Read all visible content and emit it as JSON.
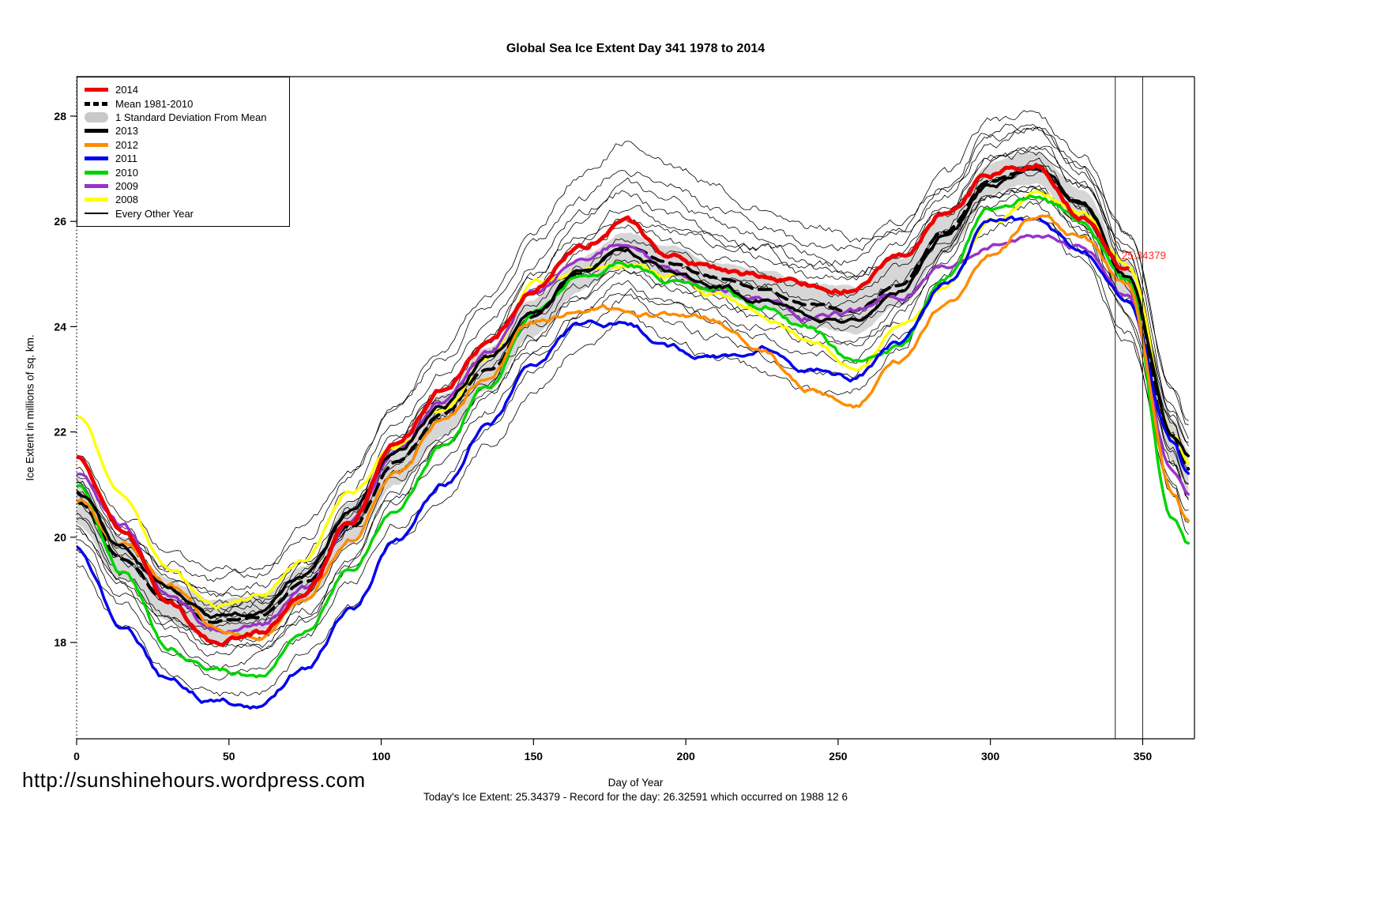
{
  "chart_data": {
    "type": "line",
    "title": "Global Sea Ice Extent Day 341 1978 to 2014",
    "xlabel": "Day of Year",
    "ylabel": "Ice Extent in millions of sq. km.",
    "xlim": [
      0,
      367
    ],
    "ylim": [
      16.17,
      28.75
    ],
    "xticks": [
      0,
      50,
      100,
      150,
      200,
      250,
      300,
      350
    ],
    "yticks": [
      18,
      20,
      22,
      24,
      26,
      28
    ],
    "grid": false,
    "legend_position": "top-left",
    "sample_days": [
      0,
      15,
      30,
      45,
      60,
      75,
      90,
      105,
      120,
      135,
      150,
      165,
      180,
      195,
      210,
      225,
      240,
      255,
      270,
      285,
      300,
      315,
      330,
      345,
      360,
      365
    ],
    "mean": {
      "label": "Mean 1981-2010",
      "color": "#000000",
      "values": [
        20.7,
        19.6,
        18.8,
        18.4,
        18.5,
        19.1,
        20.2,
        21.4,
        22.3,
        23.2,
        24.2,
        25.0,
        25.5,
        25.2,
        24.9,
        24.7,
        24.4,
        24.3,
        24.8,
        25.8,
        26.8,
        27.0,
        26.3,
        24.9,
        21.9,
        21.3
      ]
    },
    "band_label": "1 Standard Deviation From Mean",
    "band_color": "#d2d2d2",
    "std": [
      0.45,
      0.4,
      0.4,
      0.4,
      0.35,
      0.35,
      0.4,
      0.4,
      0.4,
      0.4,
      0.35,
      0.3,
      0.3,
      0.3,
      0.3,
      0.35,
      0.4,
      0.45,
      0.45,
      0.4,
      0.3,
      0.3,
      0.3,
      0.35,
      0.4,
      0.4
    ],
    "years": [
      {
        "label": "2014",
        "color": "#ee0000",
        "width": 5,
        "values": [
          21.5,
          20.1,
          18.7,
          18.0,
          18.2,
          19.0,
          20.3,
          21.8,
          22.8,
          23.7,
          24.7,
          25.5,
          26.0,
          25.3,
          25.1,
          25.0,
          24.8,
          24.7,
          25.3,
          26.2,
          26.9,
          27.1,
          26.1,
          25.1,
          null,
          null
        ]
      },
      {
        "label": "2013",
        "color": "#000000",
        "width": 3.5,
        "values": [
          20.9,
          19.8,
          19.0,
          18.5,
          18.6,
          19.3,
          20.5,
          21.6,
          22.5,
          23.4,
          24.3,
          25.0,
          25.4,
          25.1,
          24.8,
          24.5,
          24.2,
          24.1,
          24.7,
          25.7,
          26.7,
          27.0,
          26.4,
          25.0,
          22.0,
          21.6
        ]
      },
      {
        "label": "2012",
        "color": "#ff8c00",
        "width": 3.5,
        "values": [
          20.7,
          19.9,
          19.1,
          18.3,
          18.1,
          18.9,
          20.0,
          21.2,
          22.2,
          23.1,
          24.1,
          24.3,
          24.3,
          24.2,
          24.1,
          23.5,
          22.8,
          22.5,
          23.3,
          24.4,
          25.4,
          26.1,
          25.7,
          24.8,
          20.8,
          20.3
        ]
      },
      {
        "label": "2011",
        "color": "#0000ee",
        "width": 3.5,
        "values": [
          19.8,
          18.3,
          17.3,
          16.9,
          16.8,
          17.5,
          18.6,
          19.9,
          21.0,
          22.1,
          23.3,
          24.0,
          24.1,
          23.6,
          23.4,
          23.6,
          23.2,
          23.0,
          23.7,
          24.8,
          26.0,
          26.0,
          25.4,
          24.6,
          21.8,
          21.2
        ]
      },
      {
        "label": "2010",
        "color": "#00d400",
        "width": 3.5,
        "values": [
          21.0,
          19.3,
          17.9,
          17.5,
          17.4,
          18.2,
          19.4,
          20.6,
          21.7,
          22.9,
          24.2,
          25.0,
          25.2,
          24.9,
          24.7,
          24.4,
          24.0,
          23.3,
          23.6,
          25.0,
          26.2,
          26.5,
          26.0,
          24.9,
          20.3,
          19.8
        ]
      },
      {
        "label": "2009",
        "color": "#9932cc",
        "width": 3.5,
        "values": [
          21.2,
          20.2,
          18.9,
          18.2,
          18.3,
          19.0,
          20.3,
          21.6,
          22.6,
          23.5,
          24.6,
          25.3,
          25.6,
          25.1,
          24.7,
          24.5,
          24.2,
          24.3,
          24.6,
          25.2,
          25.5,
          25.7,
          25.5,
          24.5,
          21.3,
          20.8
        ]
      },
      {
        "label": "2008",
        "color": "#ffff00",
        "width": 3.5,
        "values": [
          22.3,
          20.8,
          19.4,
          18.7,
          18.9,
          19.6,
          20.9,
          21.7,
          22.4,
          23.4,
          24.8,
          25.1,
          25.2,
          25.0,
          24.6,
          24.2,
          23.8,
          23.2,
          24.0,
          24.7,
          26.0,
          26.5,
          26.2,
          25.2,
          22.0,
          21.5
        ]
      }
    ],
    "every_other_year": {
      "label": "Every Other Year",
      "color": "#000000",
      "offset_days": [
        0,
        60,
        120,
        180,
        240,
        300,
        365
      ],
      "offsets": [
        [
          0.5,
          0.8,
          1.2,
          2.0,
          1.5,
          0.8,
          0.6
        ],
        [
          0.3,
          0.6,
          0.8,
          1.2,
          1.0,
          0.9,
          0.4
        ],
        [
          0.6,
          0.4,
          0.6,
          0.8,
          0.6,
          0.7,
          0.9
        ],
        [
          0.2,
          0.3,
          0.5,
          0.6,
          0.8,
          0.5,
          0.2
        ],
        [
          0.0,
          0.2,
          0.3,
          0.4,
          0.3,
          0.3,
          0.5
        ],
        [
          0.1,
          0.0,
          0.1,
          0.2,
          0.0,
          0.1,
          0.0
        ],
        [
          -0.1,
          0.1,
          0.0,
          -0.1,
          0.1,
          0.0,
          -0.2
        ],
        [
          -0.3,
          -0.2,
          -0.1,
          -0.3,
          -0.2,
          -0.1,
          -0.3
        ],
        [
          -0.5,
          -0.4,
          -0.3,
          -0.5,
          -0.4,
          -0.3,
          -0.5
        ],
        [
          -0.7,
          -0.6,
          -0.8,
          -0.7,
          -0.9,
          -0.5,
          -0.8
        ],
        [
          -0.9,
          -1.0,
          -1.2,
          -1.0,
          -1.3,
          -0.7,
          -1.0
        ],
        [
          -1.2,
          -1.4,
          -1.5,
          -1.4,
          -1.6,
          -0.9,
          -1.2
        ],
        [
          0.8,
          1.0,
          1.1,
          1.5,
          1.2,
          1.0,
          0.8
        ],
        [
          -0.2,
          -0.5,
          -0.6,
          -0.4,
          -0.6,
          -0.3,
          -0.5
        ],
        [
          0.4,
          0.2,
          0.4,
          1.0,
          0.7,
          0.4,
          0.3
        ],
        [
          -0.6,
          -0.8,
          -0.5,
          -0.8,
          -0.7,
          -0.4,
          -0.6
        ]
      ]
    },
    "marker": {
      "days": [
        341,
        350
      ],
      "label": "25.34379",
      "value": 25.34379,
      "label_color": "#ff2d2d"
    }
  },
  "legend": {
    "items": [
      {
        "label": "2014",
        "color": "#ee0000",
        "style": "thick"
      },
      {
        "label": "Mean 1981-2010",
        "color": "#000000",
        "style": "dashed"
      },
      {
        "label": "1 Standard Deviation From Mean",
        "color": "#c8c8c8",
        "style": "band"
      },
      {
        "label": "2013",
        "color": "#000000",
        "style": "thick"
      },
      {
        "label": "2012",
        "color": "#ff8c00",
        "style": "thick"
      },
      {
        "label": "2011",
        "color": "#0000ee",
        "style": "thick"
      },
      {
        "label": "2010",
        "color": "#00d400",
        "style": "thick"
      },
      {
        "label": "2009",
        "color": "#9932cc",
        "style": "thick"
      },
      {
        "label": "2008",
        "color": "#ffff00",
        "style": "thick"
      },
      {
        "label": "Every Other Year",
        "color": "#000000",
        "style": "thin"
      }
    ]
  },
  "footer": {
    "url": "http://sunshinehours.wordpress.com",
    "status": "Today's Ice Extent: 25.34379  - Record for the day: 26.32591 which occurred on 1988 12 6"
  }
}
